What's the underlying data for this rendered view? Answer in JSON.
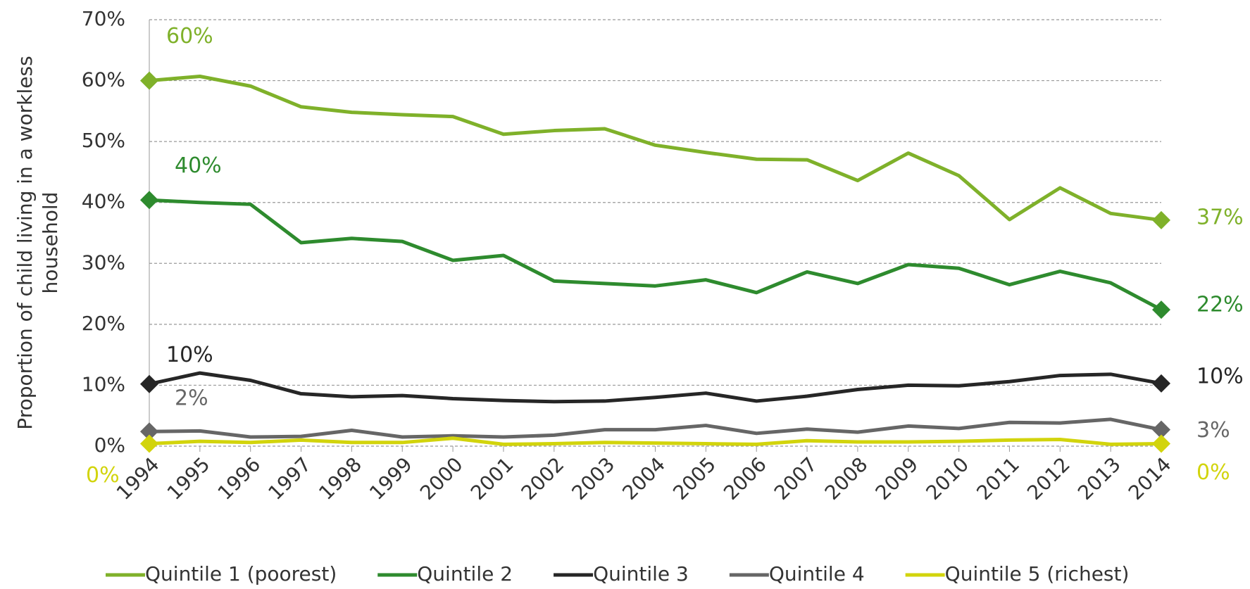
{
  "chart_data": {
    "type": "line",
    "ylabel": "Proportion of child living in a workless household",
    "categories": [
      "1994",
      "1995",
      "1996",
      "1997",
      "1998",
      "1999",
      "2000",
      "2001",
      "2002",
      "2003",
      "2004",
      "2005",
      "2006",
      "2007",
      "2008",
      "2009",
      "2010",
      "2011",
      "2012",
      "2013",
      "2014"
    ],
    "ylim": [
      0,
      70
    ],
    "yticks": [
      {
        "value": 0,
        "label": "0%"
      },
      {
        "value": 10,
        "label": "10%"
      },
      {
        "value": 20,
        "label": "20%"
      },
      {
        "value": 30,
        "label": "30%"
      },
      {
        "value": 40,
        "label": "40%"
      },
      {
        "value": 50,
        "label": "50%"
      },
      {
        "value": 60,
        "label": "60%"
      },
      {
        "value": 70,
        "label": "70%"
      }
    ],
    "grid": true,
    "legend": "bottom",
    "series": [
      {
        "name": "Quintile 1 (poorest)",
        "color": "#7fb12a",
        "values": [
          60,
          60.7,
          59.1,
          55.7,
          54.8,
          54.4,
          54.1,
          51.2,
          51.8,
          52.1,
          49.4,
          48.2,
          47.1,
          47.0,
          43.6,
          48.1,
          44.4,
          37.2,
          42.4,
          38.2,
          37.1
        ],
        "value_labels": [
          "60%",
          null,
          null,
          null,
          null,
          null,
          null,
          null,
          null,
          null,
          null,
          null,
          null,
          null,
          null,
          null,
          null,
          null,
          null,
          null,
          "37%"
        ]
      },
      {
        "name": "Quintile 2",
        "color": "#2e8b2e",
        "values": [
          40.4,
          40.0,
          39.7,
          33.4,
          34.1,
          33.6,
          30.5,
          31.3,
          27.1,
          26.7,
          26.3,
          27.3,
          25.2,
          28.6,
          26.7,
          29.8,
          29.2,
          26.5,
          28.7,
          26.8,
          22.4
        ],
        "value_labels": [
          "40%",
          null,
          null,
          null,
          null,
          null,
          null,
          null,
          null,
          null,
          null,
          null,
          null,
          null,
          null,
          null,
          null,
          null,
          null,
          null,
          "22%"
        ]
      },
      {
        "name": "Quintile 3",
        "color": "#262626",
        "values": [
          10.2,
          12.0,
          10.8,
          8.6,
          8.1,
          8.3,
          7.8,
          7.5,
          7.3,
          7.4,
          8.0,
          8.7,
          7.4,
          8.2,
          9.3,
          10.0,
          9.9,
          10.6,
          11.6,
          11.8,
          10.3
        ],
        "value_labels": [
          "10%",
          null,
          null,
          null,
          null,
          null,
          null,
          null,
          null,
          null,
          null,
          null,
          null,
          null,
          null,
          null,
          null,
          null,
          null,
          null,
          "10%"
        ]
      },
      {
        "name": "Quintile 4",
        "color": "#666666",
        "values": [
          2.4,
          2.5,
          1.5,
          1.6,
          2.6,
          1.5,
          1.7,
          1.5,
          1.8,
          2.7,
          2.7,
          3.4,
          2.1,
          2.8,
          2.3,
          3.3,
          2.9,
          3.9,
          3.8,
          4.4,
          2.7
        ],
        "value_labels": [
          "2%",
          null,
          null,
          null,
          null,
          null,
          null,
          null,
          null,
          null,
          null,
          null,
          null,
          null,
          null,
          null,
          null,
          null,
          null,
          null,
          "3%"
        ]
      },
      {
        "name": "Quintile 5 (richest)",
        "color": "#d2d40c",
        "values": [
          0.4,
          0.8,
          0.6,
          1.0,
          0.6,
          0.6,
          1.3,
          0.3,
          0.4,
          0.6,
          0.5,
          0.4,
          0.3,
          0.9,
          0.7,
          0.7,
          0.8,
          1.0,
          1.1,
          0.3,
          0.4
        ],
        "value_labels": [
          "0%",
          null,
          null,
          null,
          null,
          null,
          null,
          null,
          null,
          null,
          null,
          null,
          null,
          null,
          null,
          null,
          null,
          null,
          null,
          null,
          "0%"
        ]
      }
    ]
  }
}
